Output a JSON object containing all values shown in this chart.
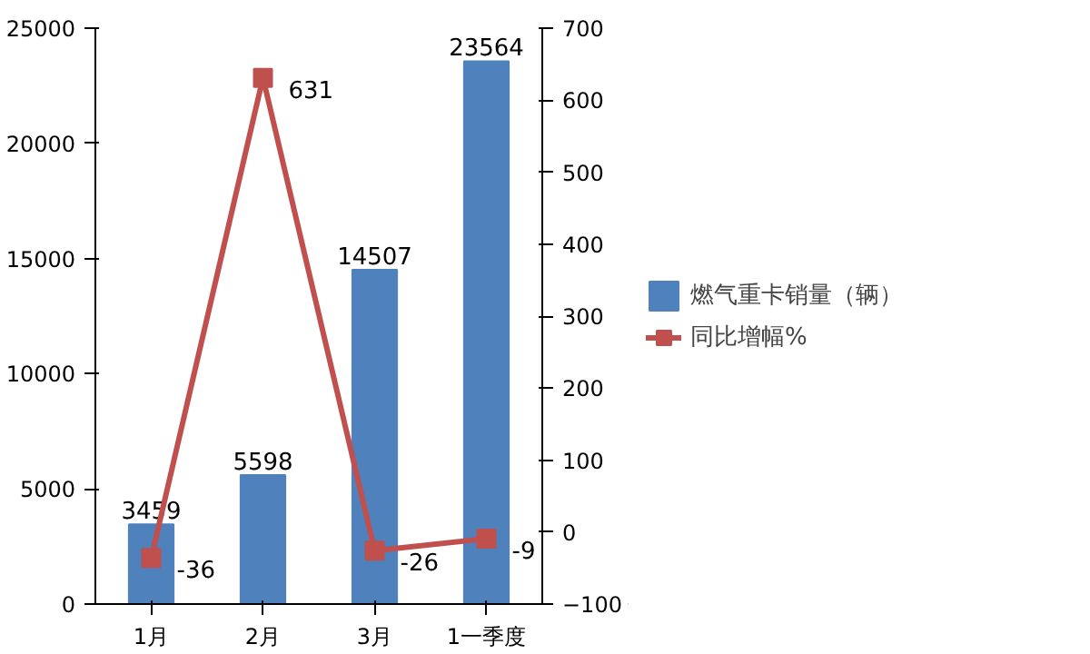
{
  "chart_data": {
    "type": "bar",
    "categories": [
      "1月",
      "2月",
      "3月",
      "1一季度"
    ],
    "series": [
      {
        "name": "燃气重卡销量（辆）",
        "color": "#4f81bd",
        "values": [
          3459,
          5598,
          14507,
          23564
        ]
      },
      {
        "name": "同比增幅%",
        "type": "line",
        "axis": "y2",
        "color": "#c0504d",
        "values": [
          -36,
          631,
          -26,
          -9
        ],
        "marker": "square"
      }
    ],
    "ylim": [
      0,
      25000
    ],
    "yticks": [
      0,
      5000,
      10000,
      15000,
      20000,
      25000
    ],
    "y2lim": [
      -100,
      700
    ],
    "y2ticks": [
      -100,
      0,
      100,
      200,
      300,
      400,
      500,
      600,
      700
    ],
    "data_labels": true,
    "legend": "right",
    "grid": false
  }
}
